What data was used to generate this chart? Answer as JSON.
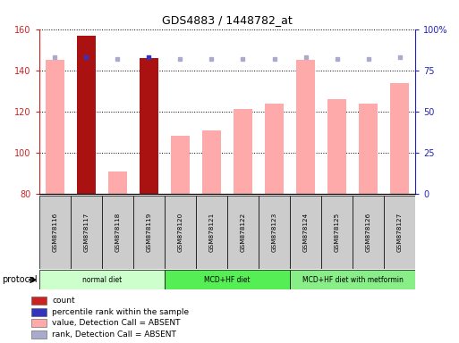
{
  "title": "GDS4883 / 1448782_at",
  "samples": [
    "GSM878116",
    "GSM878117",
    "GSM878118",
    "GSM878119",
    "GSM878120",
    "GSM878121",
    "GSM878122",
    "GSM878123",
    "GSM878124",
    "GSM878125",
    "GSM878126",
    "GSM878127"
  ],
  "value_bars": [
    145,
    157,
    91,
    146,
    108,
    111,
    121,
    124,
    145,
    126,
    124,
    134
  ],
  "count_bars_idx": [
    1,
    3
  ],
  "count_bar_color": "#aa1111",
  "value_bar_color": "#ffaaaa",
  "percentile_rank": [
    83,
    83,
    82,
    83,
    82,
    82,
    82,
    82,
    83,
    82,
    82,
    83
  ],
  "rank_dots": [
    83,
    83,
    82,
    83,
    82,
    82,
    82,
    82,
    83,
    82,
    82,
    83
  ],
  "blue_dot_color": "#3333bb",
  "light_blue_dot_color": "#aaaacc",
  "ylim_left": [
    80,
    160
  ],
  "ylim_right": [
    0,
    100
  ],
  "yticks_left": [
    80,
    100,
    120,
    140,
    160
  ],
  "yticks_right": [
    0,
    25,
    50,
    75,
    100
  ],
  "yticklabels_right": [
    "0",
    "25",
    "50",
    "75",
    "100%"
  ],
  "protocol_groups": [
    {
      "label": "normal diet",
      "start": 0,
      "end": 3,
      "color": "#ccffcc"
    },
    {
      "label": "MCD+HF diet",
      "start": 4,
      "end": 7,
      "color": "#55ee55"
    },
    {
      "label": "MCD+HF diet with metformin",
      "start": 8,
      "end": 11,
      "color": "#88ee88"
    }
  ],
  "legend_items": [
    {
      "color": "#cc2222",
      "label": "count"
    },
    {
      "color": "#3333bb",
      "label": "percentile rank within the sample"
    },
    {
      "color": "#ffaaaa",
      "label": "value, Detection Call = ABSENT"
    },
    {
      "color": "#aaaacc",
      "label": "rank, Detection Call = ABSENT"
    }
  ],
  "protocol_label": "protocol",
  "left_axis_color": "#cc2222",
  "right_axis_color": "#2222bb",
  "sample_box_color": "#cccccc",
  "bg_color": "#ffffff"
}
